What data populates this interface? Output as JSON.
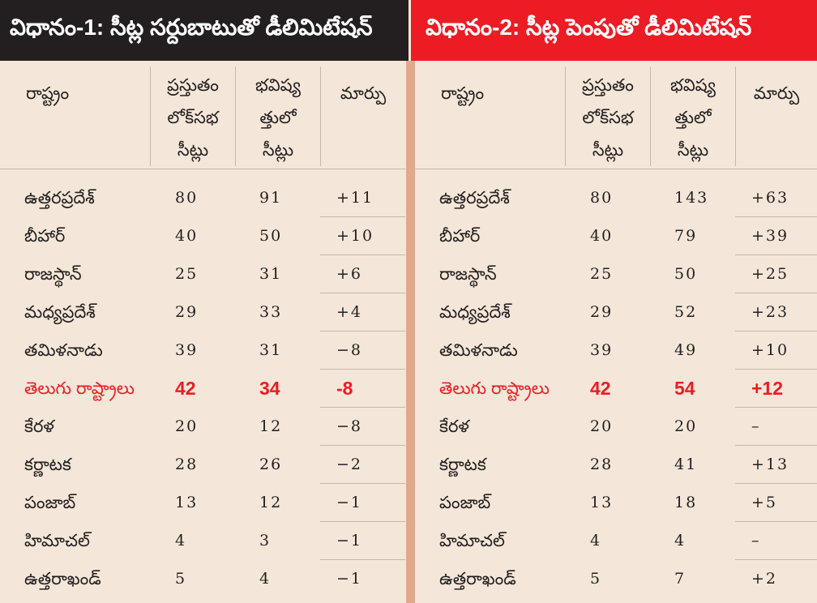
{
  "colors": {
    "background": "#f4e7d9",
    "text": "#231f20",
    "method_1_header": "#231f20",
    "method_2_header": "#ec1c24",
    "highlight": "#ec1c24",
    "divider": "#e0a98c",
    "grid": "#c6b7a8"
  },
  "chart_data": [
    {
      "type": "table",
      "title": "విధానం-1: సీట్ల సర్దుబాటుతో డీలిమిటేషన్",
      "columns": [
        [
          "రాష్ట్రం"
        ],
        [
          "ప్రస్తుతం",
          "లోక్‌సభ",
          "సీట్లు"
        ],
        [
          "భవిష్య",
          "త్తులో",
          "సీట్లు"
        ],
        [
          "మార్పు"
        ]
      ],
      "rows": [
        {
          "state": "ఉత్తరప్రదేశ్",
          "current": 80,
          "future": 91,
          "change": "+11"
        },
        {
          "state": "బీహార్",
          "current": 40,
          "future": 50,
          "change": "+10"
        },
        {
          "state": "రాజస్థాన్",
          "current": 25,
          "future": 31,
          "change": "+6"
        },
        {
          "state": "మధ్యప్రదేశ్",
          "current": 29,
          "future": 33,
          "change": "+4"
        },
        {
          "state": "తమిళనాడు",
          "current": 39,
          "future": 31,
          "change": "−8"
        },
        {
          "state": "తెలుగు రాష్ట్రాలు",
          "current": 42,
          "future": 34,
          "change": "-8",
          "highlight": true
        },
        {
          "state": "కేరళ",
          "current": 20,
          "future": 12,
          "change": "−8"
        },
        {
          "state": "కర్ణాటక",
          "current": 28,
          "future": 26,
          "change": "−2"
        },
        {
          "state": "పంజాబ్",
          "current": 13,
          "future": 12,
          "change": "−1"
        },
        {
          "state": "హిమాచల్",
          "current": 4,
          "future": 3,
          "change": "−1"
        },
        {
          "state": "ఉత్తరాఖండ్",
          "current": 5,
          "future": 4,
          "change": "−1"
        }
      ]
    },
    {
      "type": "table",
      "title": "విధానం-2: సీట్ల పెంపుతో డీలిమిటేషన్",
      "columns": [
        [
          "రాష్ట్రం"
        ],
        [
          "ప్రస్తుతం",
          "లోక్‌సభ",
          "సీట్లు"
        ],
        [
          "భవిష్య",
          "త్తులో",
          "సీట్లు"
        ],
        [
          "మార్పు"
        ]
      ],
      "rows": [
        {
          "state": "ఉత్తరప్రదేశ్",
          "current": 80,
          "future": 143,
          "change": "+63"
        },
        {
          "state": "బీహార్",
          "current": 40,
          "future": 79,
          "change": "+39"
        },
        {
          "state": "రాజస్థాన్",
          "current": 25,
          "future": 50,
          "change": "+25"
        },
        {
          "state": "మధ్యప్రదేశ్",
          "current": 29,
          "future": 52,
          "change": "+23"
        },
        {
          "state": "తమిళనాడు",
          "current": 39,
          "future": 49,
          "change": "+10"
        },
        {
          "state": "తెలుగు రాష్ట్రాలు",
          "current": 42,
          "future": 54,
          "change": "+12",
          "highlight": true
        },
        {
          "state": "కేరళ",
          "current": 20,
          "future": 20,
          "change": "–"
        },
        {
          "state": "కర్ణాటక",
          "current": 28,
          "future": 41,
          "change": "+13"
        },
        {
          "state": "పంజాబ్",
          "current": 13,
          "future": 18,
          "change": "+5"
        },
        {
          "state": "హిమాచల్",
          "current": 4,
          "future": 4,
          "change": "–"
        },
        {
          "state": "ఉత్తరాఖండ్",
          "current": 5,
          "future": 7,
          "change": "+2"
        }
      ]
    }
  ]
}
